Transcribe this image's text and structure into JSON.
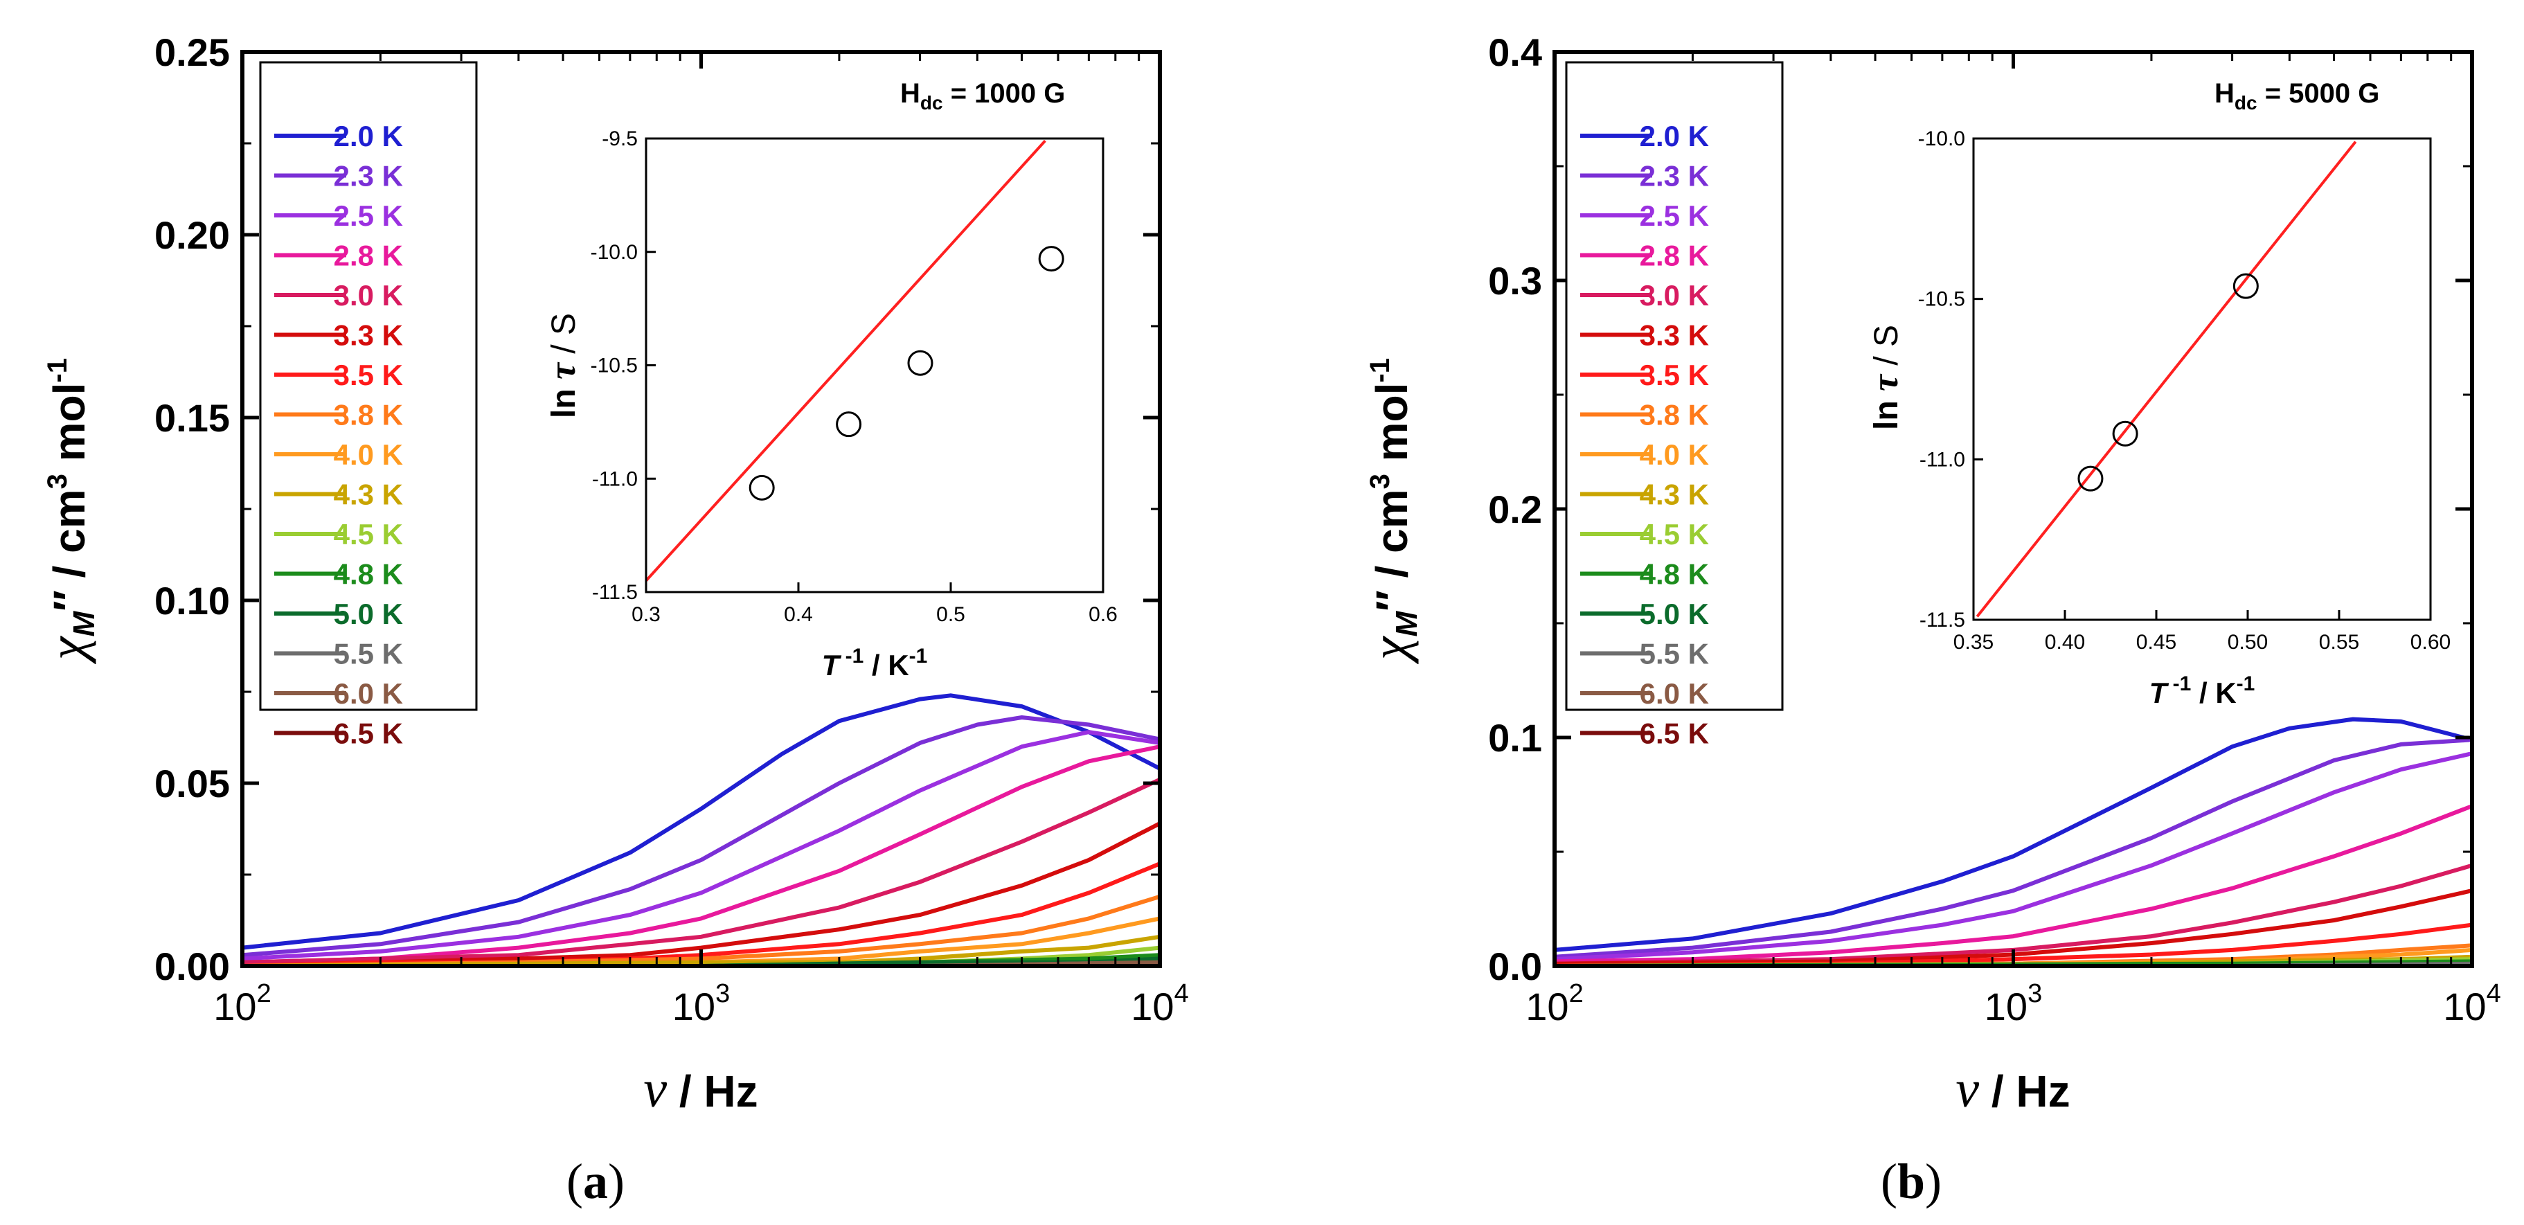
{
  "figure": {
    "panels": [
      {
        "caption_open": "(",
        "caption_letter": "a",
        "caption_close": ")"
      },
      {
        "caption_open": "(",
        "caption_letter": "b",
        "caption_close": ")"
      }
    ]
  },
  "chart_data": [
    {
      "id": "a",
      "type": "line",
      "xscale": "log",
      "xlim": [
        100,
        10000
      ],
      "ylim": [
        0,
        0.25
      ],
      "xticks": [
        {
          "value": 100,
          "base": "10",
          "exp": "2"
        },
        {
          "value": 1000,
          "base": "10",
          "exp": "3"
        },
        {
          "value": 10000,
          "base": "10",
          "exp": "4"
        }
      ],
      "yticks": [
        {
          "value": 0,
          "label": "0.00"
        },
        {
          "value": 0.05,
          "label": "0.05"
        },
        {
          "value": 0.1,
          "label": "0.10"
        },
        {
          "value": 0.15,
          "label": "0.15"
        },
        {
          "value": 0.2,
          "label": "0.20"
        },
        {
          "value": 0.25,
          "label": "0.25"
        }
      ],
      "xlabel": {
        "symbol": "ν",
        "unit": " / Hz"
      },
      "ylabel": {
        "symbol": "χ",
        "sub": "M",
        "prime": "″",
        "unit1": " / cm",
        "sup1": "3",
        "unit2": " mol",
        "sup2": "-1"
      },
      "annotation": {
        "prefix": "H",
        "sub": "dc",
        "value": " = 1000 G"
      },
      "legend_position": "top-left",
      "series": [
        {
          "name": "2.0 K",
          "color": "#1f1fd1",
          "x": [
            100,
            200,
            400,
            700,
            1000,
            1500,
            2000,
            3000,
            3500,
            5000,
            7000,
            10000
          ],
          "y": [
            0.005,
            0.009,
            0.018,
            0.031,
            0.043,
            0.058,
            0.067,
            0.073,
            0.074,
            0.071,
            0.064,
            0.054
          ]
        },
        {
          "name": "2.3 K",
          "color": "#7a2fd6",
          "x": [
            100,
            200,
            400,
            700,
            1000,
            2000,
            3000,
            4000,
            5000,
            7000,
            10000
          ],
          "y": [
            0.003,
            0.006,
            0.012,
            0.021,
            0.029,
            0.05,
            0.061,
            0.066,
            0.068,
            0.066,
            0.062
          ]
        },
        {
          "name": "2.5 K",
          "color": "#9b30e0",
          "x": [
            100,
            200,
            400,
            700,
            1000,
            2000,
            3000,
            5000,
            7000,
            10000
          ],
          "y": [
            0.002,
            0.004,
            0.008,
            0.014,
            0.02,
            0.037,
            0.048,
            0.06,
            0.064,
            0.061
          ]
        },
        {
          "name": "2.8 K",
          "color": "#e8199c",
          "x": [
            100,
            200,
            400,
            700,
            1000,
            2000,
            3000,
            5000,
            7000,
            10000
          ],
          "y": [
            0.001,
            0.002,
            0.005,
            0.009,
            0.013,
            0.026,
            0.036,
            0.049,
            0.056,
            0.06
          ]
        },
        {
          "name": "3.0 K",
          "color": "#d81b60",
          "x": [
            100,
            200,
            400,
            700,
            1000,
            2000,
            3000,
            5000,
            7000,
            10000
          ],
          "y": [
            0.001,
            0.002,
            0.003,
            0.006,
            0.008,
            0.016,
            0.023,
            0.034,
            0.042,
            0.051
          ]
        },
        {
          "name": "3.3 K",
          "color": "#d40c0c",
          "x": [
            100,
            200,
            400,
            700,
            1000,
            2000,
            3000,
            5000,
            7000,
            10000
          ],
          "y": [
            0.0,
            0.001,
            0.002,
            0.003,
            0.005,
            0.01,
            0.014,
            0.022,
            0.029,
            0.039
          ]
        },
        {
          "name": "3.5 K",
          "color": "#ff1a1a",
          "x": [
            100,
            200,
            400,
            700,
            1000,
            2000,
            3000,
            5000,
            7000,
            10000
          ],
          "y": [
            0.0,
            0.001,
            0.001,
            0.002,
            0.003,
            0.006,
            0.009,
            0.014,
            0.02,
            0.028
          ]
        },
        {
          "name": "3.8 K",
          "color": "#ff7a1a",
          "x": [
            100,
            400,
            1000,
            2000,
            3000,
            5000,
            7000,
            10000
          ],
          "y": [
            0.0,
            0.001,
            0.002,
            0.004,
            0.006,
            0.009,
            0.013,
            0.019
          ]
        },
        {
          "name": "4.0 K",
          "color": "#ff9a1f",
          "x": [
            100,
            400,
            1000,
            2000,
            3000,
            5000,
            7000,
            10000
          ],
          "y": [
            0.0,
            0.0,
            0.001,
            0.002,
            0.004,
            0.006,
            0.009,
            0.013
          ]
        },
        {
          "name": "4.3 K",
          "color": "#c9a400",
          "x": [
            100,
            1000,
            2000,
            3000,
            5000,
            7000,
            10000
          ],
          "y": [
            0.0,
            0.001,
            0.001,
            0.002,
            0.004,
            0.005,
            0.008
          ]
        },
        {
          "name": "4.5 K",
          "color": "#9acd32",
          "x": [
            100,
            1000,
            3000,
            5000,
            7000,
            10000
          ],
          "y": [
            0.0,
            0.0,
            0.001,
            0.002,
            0.003,
            0.005
          ]
        },
        {
          "name": "4.8 K",
          "color": "#1c8c1c",
          "x": [
            100,
            1000,
            3000,
            7000,
            10000
          ],
          "y": [
            0.0,
            0.0,
            0.001,
            0.002,
            0.003
          ]
        },
        {
          "name": "5.0 K",
          "color": "#0b6b2b",
          "x": [
            100,
            1000,
            3000,
            7000,
            10000
          ],
          "y": [
            0.0,
            0.0,
            0.001,
            0.001,
            0.002
          ]
        },
        {
          "name": "5.5 K",
          "color": "#6d6d6d",
          "x": [
            100,
            3000,
            10000
          ],
          "y": [
            0.0,
            0.0,
            0.001
          ]
        },
        {
          "name": "6.0 K",
          "color": "#8a5a44",
          "x": [
            100,
            3000,
            10000
          ],
          "y": [
            0.0,
            0.0,
            0.001
          ]
        },
        {
          "name": "6.5 K",
          "color": "#7a0c0c",
          "x": [
            100,
            3000,
            10000
          ],
          "y": [
            0.0,
            0.0,
            0.0
          ]
        }
      ],
      "inset": {
        "type": "scatter",
        "xlim": [
          0.3,
          0.6
        ],
        "ylim": [
          -11.5,
          -9.5
        ],
        "xticks": [
          {
            "value": 0.3,
            "label": "0.3"
          },
          {
            "value": 0.4,
            "label": "0.4"
          },
          {
            "value": 0.5,
            "label": "0.5"
          },
          {
            "value": 0.6,
            "label": "0.6"
          }
        ],
        "yticks": [
          {
            "value": -9.5,
            "label": "-9.5"
          },
          {
            "value": -10.0,
            "label": "-10.0"
          },
          {
            "value": -10.5,
            "label": "-10.5"
          },
          {
            "value": -11.0,
            "label": "-11.0"
          },
          {
            "value": -11.5,
            "label": "-11.5"
          }
        ],
        "xlabel": {
          "sym": "T",
          "sup": " -1",
          "unit": " / K",
          "unitsup": "-1"
        },
        "ylabel": {
          "pre": "ln ",
          "sym": "τ",
          "unit": " / S"
        },
        "points": {
          "x": [
            0.376,
            0.433,
            0.48,
            0.566
          ],
          "y": [
            -11.04,
            -10.76,
            -10.49,
            -10.03
          ]
        },
        "fit": {
          "color": "#ff2020",
          "x": [
            0.3,
            0.562
          ],
          "y": [
            -11.45,
            -9.51
          ]
        }
      }
    },
    {
      "id": "b",
      "type": "line",
      "xscale": "log",
      "xlim": [
        100,
        10000
      ],
      "ylim": [
        0,
        0.4
      ],
      "xticks": [
        {
          "value": 100,
          "base": "10",
          "exp": "2"
        },
        {
          "value": 1000,
          "base": "10",
          "exp": "3"
        },
        {
          "value": 10000,
          "base": "10",
          "exp": "4"
        }
      ],
      "yticks": [
        {
          "value": 0,
          "label": "0.0"
        },
        {
          "value": 0.1,
          "label": "0.1"
        },
        {
          "value": 0.2,
          "label": "0.2"
        },
        {
          "value": 0.3,
          "label": "0.3"
        },
        {
          "value": 0.4,
          "label": "0.4"
        }
      ],
      "xlabel": {
        "symbol": "ν",
        "unit": " / Hz"
      },
      "ylabel": {
        "symbol": "χ",
        "sub": "M",
        "prime": "″",
        "unit1": " / cm",
        "sup1": "3",
        "unit2": " mol",
        "sup2": "-1"
      },
      "annotation": {
        "prefix": "H",
        "sub": "dc",
        "value": " = 5000 G"
      },
      "legend_position": "top-left",
      "series": [
        {
          "name": "2.0 K",
          "color": "#1f1fd1",
          "x": [
            100,
            200,
            400,
            700,
            1000,
            2000,
            3000,
            4000,
            5500,
            7000,
            10000
          ],
          "y": [
            0.007,
            0.012,
            0.023,
            0.037,
            0.048,
            0.078,
            0.096,
            0.104,
            0.108,
            0.107,
            0.099
          ]
        },
        {
          "name": "2.3 K",
          "color": "#7a2fd6",
          "x": [
            100,
            200,
            400,
            700,
            1000,
            2000,
            3000,
            5000,
            7000,
            10000
          ],
          "y": [
            0.004,
            0.008,
            0.015,
            0.025,
            0.033,
            0.056,
            0.072,
            0.09,
            0.097,
            0.099
          ]
        },
        {
          "name": "2.5 K",
          "color": "#9b30e0",
          "x": [
            100,
            200,
            400,
            700,
            1000,
            2000,
            3000,
            5000,
            7000,
            10000
          ],
          "y": [
            0.003,
            0.006,
            0.011,
            0.018,
            0.024,
            0.044,
            0.058,
            0.076,
            0.086,
            0.093
          ]
        },
        {
          "name": "2.8 K",
          "color": "#e8199c",
          "x": [
            100,
            200,
            400,
            700,
            1000,
            2000,
            3000,
            5000,
            7000,
            10000
          ],
          "y": [
            0.002,
            0.003,
            0.006,
            0.01,
            0.013,
            0.025,
            0.034,
            0.048,
            0.058,
            0.07
          ]
        },
        {
          "name": "3.0 K",
          "color": "#d81b60",
          "x": [
            100,
            400,
            1000,
            2000,
            3000,
            5000,
            7000,
            10000
          ],
          "y": [
            0.001,
            0.003,
            0.007,
            0.013,
            0.019,
            0.028,
            0.035,
            0.044
          ]
        },
        {
          "name": "3.3 K",
          "color": "#d40c0c",
          "x": [
            100,
            400,
            1000,
            2000,
            3000,
            5000,
            7000,
            10000
          ],
          "y": [
            0.001,
            0.002,
            0.005,
            0.01,
            0.014,
            0.02,
            0.026,
            0.033
          ]
        },
        {
          "name": "3.5 K",
          "color": "#ff1a1a",
          "x": [
            100,
            400,
            1000,
            2000,
            3000,
            5000,
            7000,
            10000
          ],
          "y": [
            0.0,
            0.001,
            0.003,
            0.005,
            0.007,
            0.011,
            0.014,
            0.018
          ]
        },
        {
          "name": "3.8 K",
          "color": "#ff7a1a",
          "x": [
            100,
            1000,
            3000,
            5000,
            7000,
            10000
          ],
          "y": [
            0.0,
            0.001,
            0.003,
            0.005,
            0.007,
            0.009
          ]
        },
        {
          "name": "4.0 K",
          "color": "#ff9a1f",
          "x": [
            100,
            1000,
            3000,
            5000,
            7000,
            10000
          ],
          "y": [
            0.0,
            0.001,
            0.002,
            0.004,
            0.005,
            0.007
          ]
        },
        {
          "name": "4.3 K",
          "color": "#c9a400",
          "x": [
            100,
            1000,
            3000,
            7000,
            10000
          ],
          "y": [
            0.0,
            0.0,
            0.002,
            0.003,
            0.004
          ]
        },
        {
          "name": "4.5 K",
          "color": "#9acd32",
          "x": [
            100,
            1000,
            3000,
            10000
          ],
          "y": [
            0.0,
            0.0,
            0.001,
            0.003
          ]
        },
        {
          "name": "4.8 K",
          "color": "#1c8c1c",
          "x": [
            100,
            3000,
            10000
          ],
          "y": [
            0.0,
            0.001,
            0.002
          ]
        },
        {
          "name": "5.0 K",
          "color": "#0b6b2b",
          "x": [
            100,
            3000,
            10000
          ],
          "y": [
            0.0,
            0.0,
            0.001
          ]
        },
        {
          "name": "5.5 K",
          "color": "#6d6d6d",
          "x": [
            100,
            3000,
            10000
          ],
          "y": [
            0.0,
            0.0,
            0.001
          ]
        },
        {
          "name": "6.0 K",
          "color": "#8a5a44",
          "x": [
            100,
            3000,
            10000
          ],
          "y": [
            0.0,
            0.0,
            0.0
          ]
        },
        {
          "name": "6.5 K",
          "color": "#7a0c0c",
          "x": [
            100,
            3000,
            10000
          ],
          "y": [
            0.0,
            0.0,
            0.0
          ]
        }
      ],
      "inset": {
        "type": "scatter",
        "xlim": [
          0.35,
          0.6
        ],
        "ylim": [
          -11.5,
          -10.0
        ],
        "xticks": [
          {
            "value": 0.35,
            "label": "0.35"
          },
          {
            "value": 0.4,
            "label": "0.40"
          },
          {
            "value": 0.45,
            "label": "0.45"
          },
          {
            "value": 0.5,
            "label": "0.50"
          },
          {
            "value": 0.55,
            "label": "0.55"
          },
          {
            "value": 0.6,
            "label": "0.60"
          }
        ],
        "yticks": [
          {
            "value": -10.0,
            "label": "-10.0"
          },
          {
            "value": -10.5,
            "label": "-10.5"
          },
          {
            "value": -11.0,
            "label": "-11.0"
          },
          {
            "value": -11.5,
            "label": "-11.5"
          }
        ],
        "xlabel": {
          "sym": "T",
          "sup": " -1",
          "unit": " / K",
          "unitsup": "-1"
        },
        "ylabel": {
          "pre": "ln ",
          "sym": "τ",
          "unit": " / S"
        },
        "points": {
          "x": [
            0.414,
            0.433,
            0.499
          ],
          "y": [
            -11.06,
            -10.92,
            -10.46
          ]
        },
        "fit": {
          "color": "#ff2020",
          "x": [
            0.352,
            0.559
          ],
          "y": [
            -11.49,
            -10.01
          ]
        }
      }
    }
  ]
}
